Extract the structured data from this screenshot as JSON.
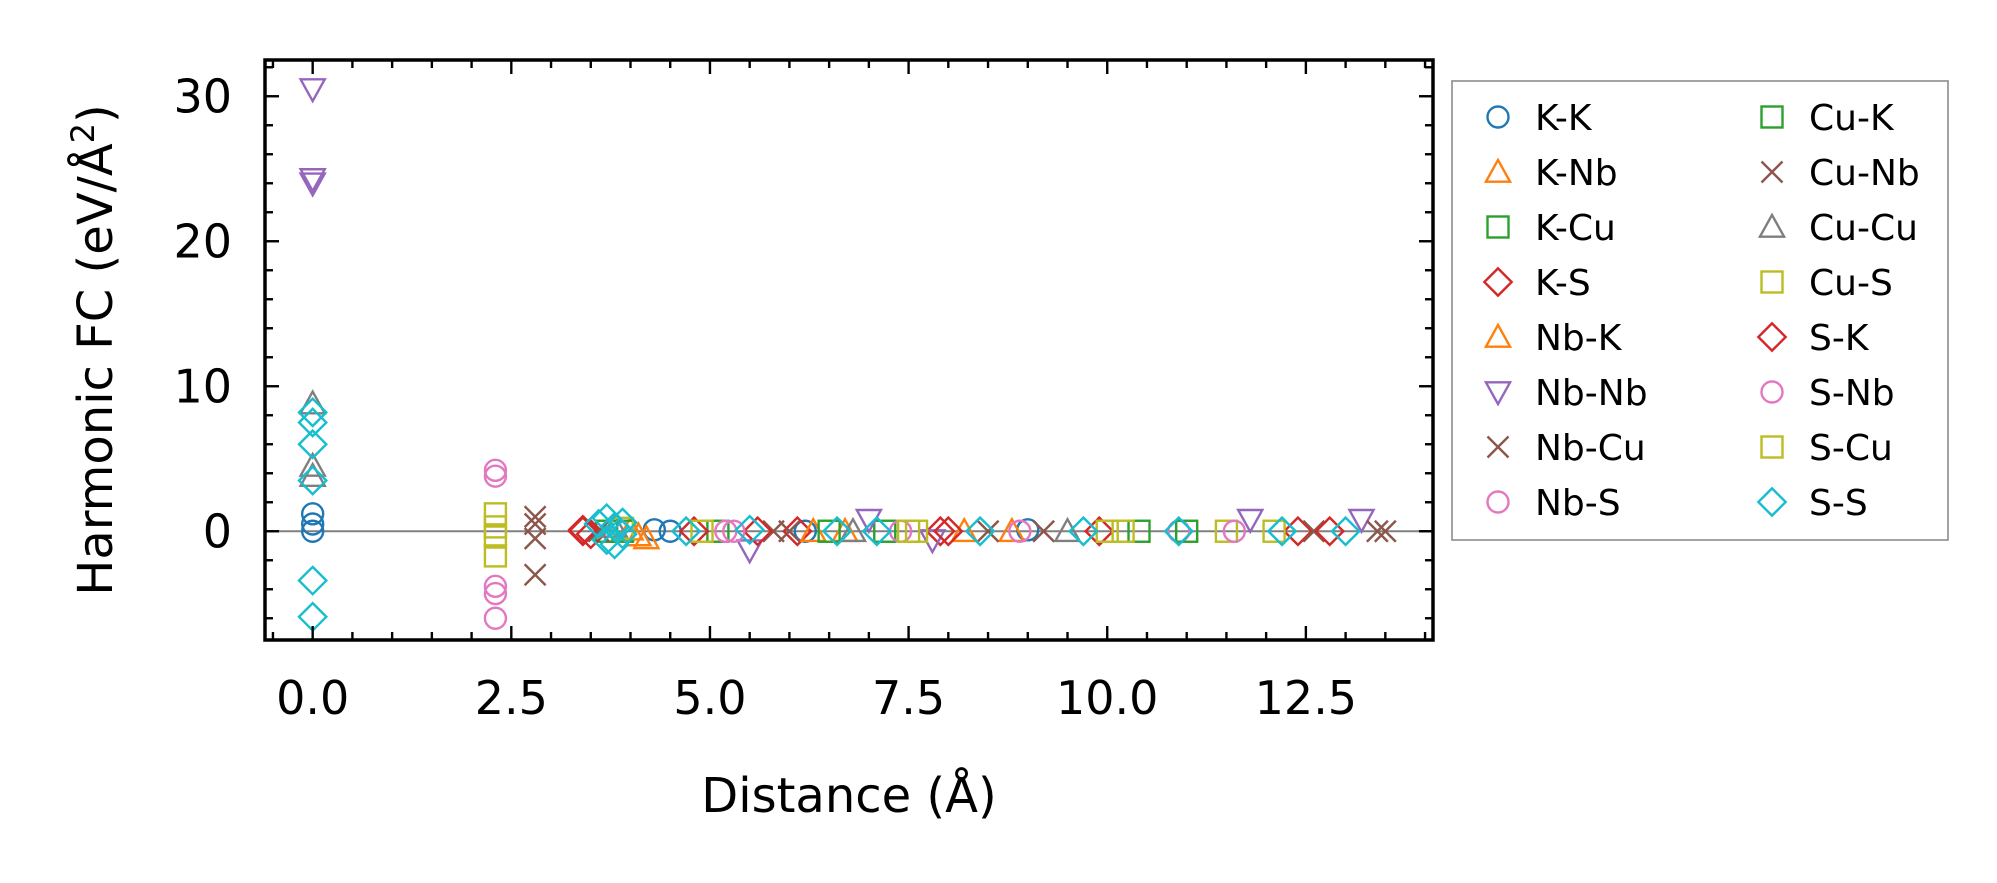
{
  "chart_data": {
    "type": "scatter",
    "title": "",
    "xlabel": "Distance (Å)",
    "ylabel_main": "Harmonic FC (eV/Å",
    "ylabel_sup": "2",
    "ylabel_tail": ")",
    "xlim": [
      -0.6,
      14.1
    ],
    "ylim": [
      -7.5,
      32.5
    ],
    "xticks": [
      0.0,
      2.5,
      5.0,
      7.5,
      10.0,
      12.5
    ],
    "xtick_labels": [
      "0.0",
      "2.5",
      "5.0",
      "7.5",
      "10.0",
      "12.5"
    ],
    "yticks": [
      0,
      10,
      20,
      30
    ],
    "ytick_labels": [
      "0",
      "10",
      "20",
      "30"
    ],
    "zero_line": 0,
    "legend_position": "right-outside",
    "series": [
      {
        "name": "K-K",
        "marker": "circle",
        "color": "#1f77b4",
        "points": [
          [
            0,
            1.2
          ],
          [
            0,
            0.5
          ],
          [
            0,
            0
          ],
          [
            4.3,
            0.1
          ],
          [
            4.5,
            0
          ],
          [
            6.2,
            0
          ],
          [
            9,
            0.1
          ]
        ]
      },
      {
        "name": "K-Nb",
        "marker": "triangle-up",
        "color": "#ff7f0e",
        "points": [
          [
            4.1,
            -0.3
          ],
          [
            4.2,
            -0.5
          ],
          [
            6.7,
            0
          ],
          [
            8.8,
            0
          ]
        ]
      },
      {
        "name": "K-Cu",
        "marker": "square",
        "color": "#2ca02c",
        "points": [
          [
            3.7,
            0
          ],
          [
            5.1,
            0
          ],
          [
            7.2,
            0
          ],
          [
            10.4,
            0
          ]
        ]
      },
      {
        "name": "K-S",
        "marker": "diamond",
        "color": "#d62728",
        "points": [
          [
            3.4,
            0
          ],
          [
            3.5,
            -0.2
          ],
          [
            4.8,
            0
          ],
          [
            6.1,
            0
          ],
          [
            7.9,
            0
          ],
          [
            9.9,
            0
          ],
          [
            12.4,
            0
          ]
        ]
      },
      {
        "name": "Nb-K",
        "marker": "triangle-up",
        "color": "#ff7f0e",
        "points": [
          [
            4.0,
            0.1
          ],
          [
            6.3,
            0
          ],
          [
            8.2,
            0
          ]
        ]
      },
      {
        "name": "Nb-Nb",
        "marker": "triangle-down",
        "color": "#9467bd",
        "points": [
          [
            0,
            30.5
          ],
          [
            0,
            24.3
          ],
          [
            0,
            24
          ],
          [
            5.5,
            -1.3
          ],
          [
            7.0,
            0.8
          ],
          [
            7.8,
            -0.6
          ],
          [
            11.8,
            0.8
          ],
          [
            13.2,
            0.8
          ]
        ]
      },
      {
        "name": "Nb-Cu",
        "marker": "x",
        "color": "#8c564b",
        "points": [
          [
            2.8,
            1.0
          ],
          [
            2.8,
            0.5
          ],
          [
            2.8,
            -0.5
          ],
          [
            2.8,
            -3.0
          ],
          [
            6.0,
            0
          ],
          [
            9.2,
            0
          ],
          [
            12.6,
            0
          ],
          [
            13.5,
            0
          ]
        ]
      },
      {
        "name": "Nb-S",
        "marker": "circle",
        "color": "#e377c2",
        "points": [
          [
            2.3,
            4.2
          ],
          [
            2.3,
            3.8
          ],
          [
            2.3,
            -3.8
          ],
          [
            2.3,
            -4.3
          ],
          [
            2.3,
            -6.0
          ],
          [
            5.2,
            0
          ],
          [
            7.4,
            0
          ],
          [
            10.9,
            0
          ]
        ]
      },
      {
        "name": "Cu-K",
        "marker": "square",
        "color": "#2ca02c",
        "points": [
          [
            3.9,
            0
          ],
          [
            6.5,
            0
          ],
          [
            11.0,
            0
          ]
        ]
      },
      {
        "name": "Cu-Nb",
        "marker": "x",
        "color": "#8c564b",
        "points": [
          [
            3.6,
            0
          ],
          [
            5.8,
            0
          ],
          [
            8.5,
            0
          ],
          [
            13.4,
            0
          ]
        ]
      },
      {
        "name": "Cu-Cu",
        "marker": "triangle-up",
        "color": "#7f7f7f",
        "points": [
          [
            0,
            8.8
          ],
          [
            0,
            4.5
          ],
          [
            0,
            3.8
          ],
          [
            3.8,
            0.3
          ],
          [
            6.8,
            0
          ],
          [
            9.5,
            0
          ]
        ]
      },
      {
        "name": "Cu-S",
        "marker": "square",
        "color": "#bcbd22",
        "points": [
          [
            2.3,
            1.2
          ],
          [
            2.3,
            0.3
          ],
          [
            2.3,
            -0.4
          ],
          [
            2.3,
            -1.7
          ],
          [
            4.9,
            0
          ],
          [
            7.5,
            0
          ],
          [
            10.0,
            0
          ],
          [
            11.5,
            0
          ],
          [
            12.1,
            0
          ]
        ]
      },
      {
        "name": "S-K",
        "marker": "diamond",
        "color": "#d62728",
        "points": [
          [
            3.4,
            0.1
          ],
          [
            5.6,
            0
          ],
          [
            8.0,
            0
          ],
          [
            12.8,
            0
          ]
        ]
      },
      {
        "name": "S-Nb",
        "marker": "circle",
        "color": "#e377c2",
        "points": [
          [
            5.3,
            0
          ],
          [
            8.9,
            0
          ],
          [
            11.6,
            0
          ]
        ]
      },
      {
        "name": "S-Cu",
        "marker": "square",
        "color": "#bcbd22",
        "points": [
          [
            3.9,
            0.2
          ],
          [
            7.6,
            0
          ],
          [
            10.2,
            0
          ]
        ]
      },
      {
        "name": "S-S",
        "marker": "diamond",
        "color": "#17becf",
        "points": [
          [
            0,
            8.2
          ],
          [
            0,
            7.5
          ],
          [
            0,
            6.0
          ],
          [
            0,
            3.5
          ],
          [
            0,
            -3.4
          ],
          [
            0,
            -5.9
          ],
          [
            3.6,
            0.5
          ],
          [
            3.7,
            0.9
          ],
          [
            3.7,
            -0.6
          ],
          [
            3.8,
            0.3
          ],
          [
            3.8,
            -0.9
          ],
          [
            3.9,
            0.6
          ],
          [
            3.9,
            -0.2
          ],
          [
            4.7,
            0
          ],
          [
            5.5,
            0.1
          ],
          [
            6.6,
            0
          ],
          [
            7.1,
            0
          ],
          [
            8.4,
            0
          ],
          [
            9.7,
            0
          ],
          [
            10.9,
            0
          ],
          [
            12.2,
            0
          ],
          [
            13.0,
            0
          ]
        ]
      }
    ]
  }
}
